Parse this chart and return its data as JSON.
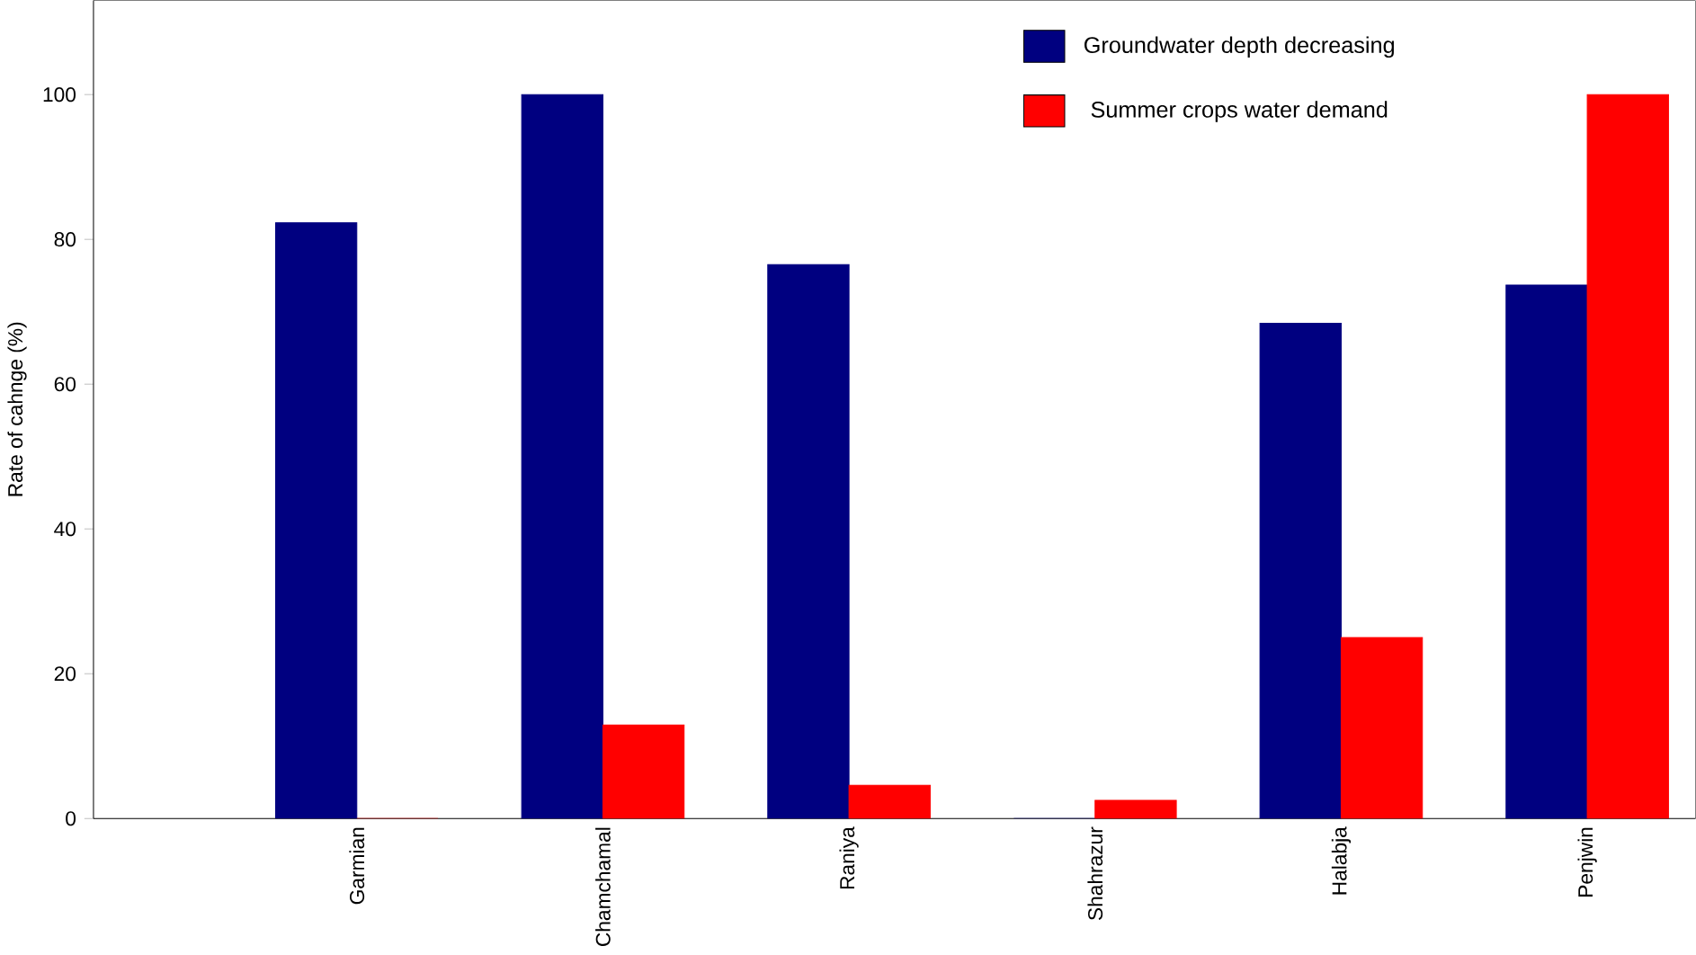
{
  "chart_data": {
    "type": "bar",
    "ylabel": "Rate of cahnge (%)",
    "categories": [
      "Garmian",
      "Chamchamal",
      "Raniya",
      "Shahrazur",
      "Halabja",
      "Penjwin"
    ],
    "series": [
      {
        "name": "Groundwater depth decreasing",
        "color": "#000080",
        "values": [
          82.3,
          100,
          76.5,
          0,
          68.4,
          73.7
        ]
      },
      {
        "name": "Summer crops water demand",
        "color": "#ff0000",
        "values": [
          0,
          12.9,
          4.6,
          2.5,
          25,
          100
        ]
      }
    ],
    "ylim": [
      0,
      113
    ],
    "yticks": [
      0,
      20,
      40,
      60,
      80,
      100
    ],
    "legend": "top right"
  }
}
